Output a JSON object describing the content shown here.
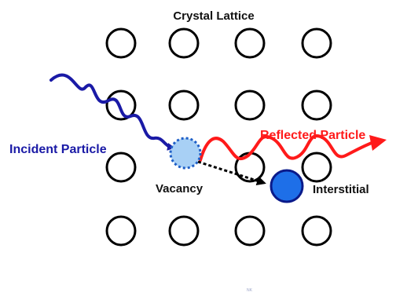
{
  "diagram": {
    "title": "Crystal Lattice",
    "labels": {
      "incident": "Incident Particle",
      "reflected": "Reflected Particle",
      "vacancy": "Vacancy",
      "interstitial": "Interstitial",
      "watermark": "NK"
    },
    "lattice": {
      "rows": 4,
      "cols": 4,
      "vacancy_position": {
        "row": 3,
        "col": 2
      }
    },
    "colors": {
      "lattice_atom": "#000000",
      "incident": "#1a1aa6",
      "reflected": "#ff1a1a",
      "vacancy_fill": "#a8d0f5",
      "vacancy_stroke": "#1f5fc7",
      "interstitial_fill": "#1e6fe8",
      "interstitial_stroke": "#0a1a8a",
      "arrow": "#000000",
      "title": "#111111",
      "watermark": "#9aa3c8"
    }
  }
}
